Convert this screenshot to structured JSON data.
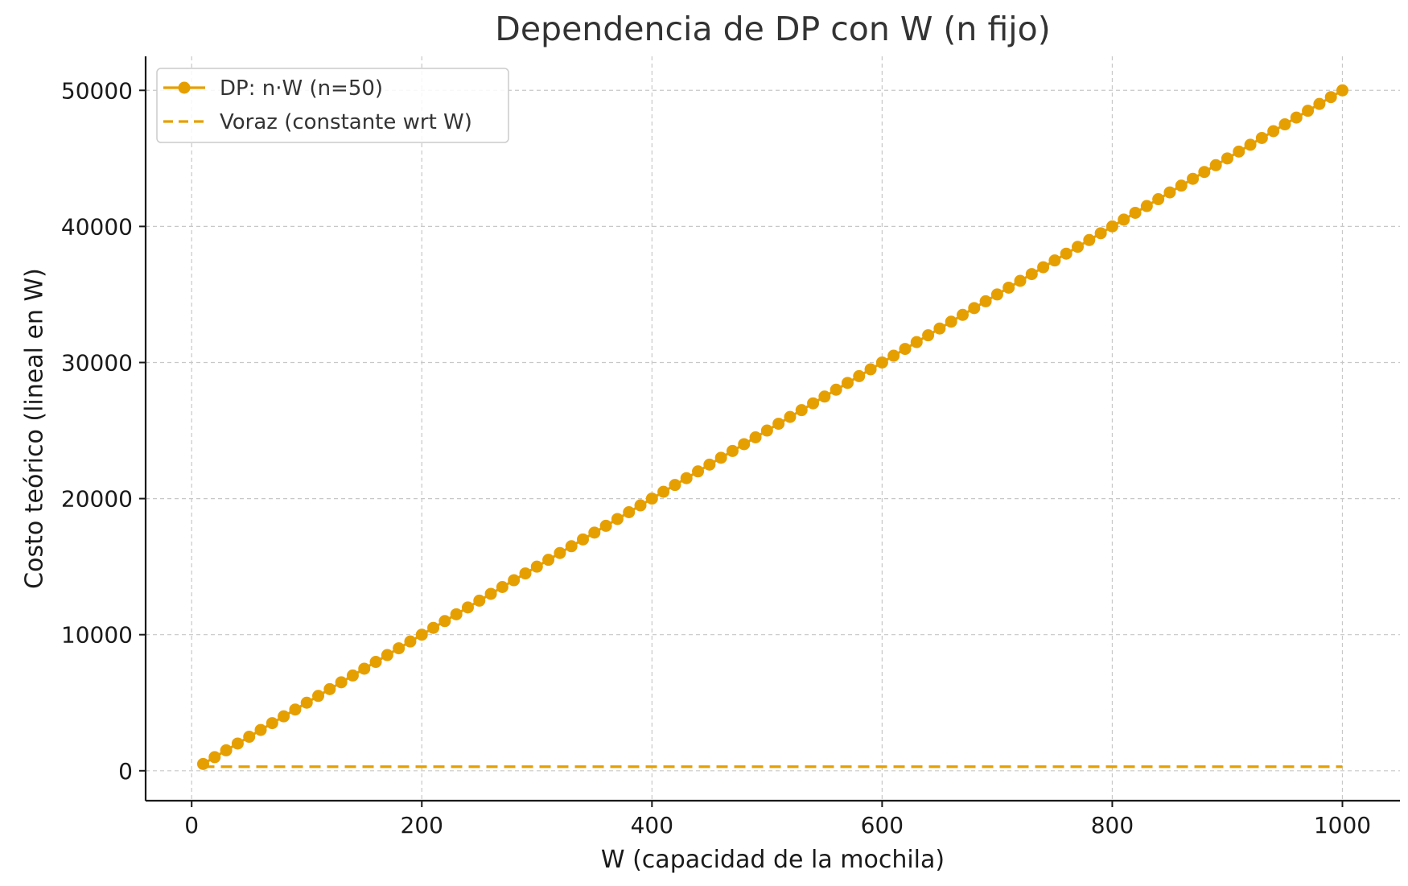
{
  "chart_data": {
    "type": "line",
    "title": "Dependencia de DP con W (n fijo)",
    "xlabel": "W (capacidad de la mochila)",
    "ylabel": "Costo teórico (lineal en W)",
    "xlim": [
      -40,
      1050
    ],
    "ylim": [
      -2200,
      52500
    ],
    "x_ticks": [
      0,
      200,
      400,
      600,
      800,
      1000
    ],
    "y_ticks": [
      0,
      10000,
      20000,
      30000,
      40000,
      50000
    ],
    "grid": true,
    "legend_position": "top-left",
    "series": [
      {
        "name": "DP: n·W (n=50)",
        "color": "#E69F00",
        "style": "solid-with-circle-markers",
        "x": [
          10,
          20,
          30,
          40,
          50,
          60,
          70,
          80,
          90,
          100,
          110,
          120,
          130,
          140,
          150,
          160,
          170,
          180,
          190,
          200,
          210,
          220,
          230,
          240,
          250,
          260,
          270,
          280,
          290,
          300,
          310,
          320,
          330,
          340,
          350,
          360,
          370,
          380,
          390,
          400,
          410,
          420,
          430,
          440,
          450,
          460,
          470,
          480,
          490,
          500,
          510,
          520,
          530,
          540,
          550,
          560,
          570,
          580,
          590,
          600,
          610,
          620,
          630,
          640,
          650,
          660,
          670,
          680,
          690,
          700,
          710,
          720,
          730,
          740,
          750,
          760,
          770,
          780,
          790,
          800,
          810,
          820,
          830,
          840,
          850,
          860,
          870,
          880,
          890,
          900,
          910,
          920,
          930,
          940,
          950,
          960,
          970,
          980,
          990,
          1000
        ],
        "y": [
          500,
          1000,
          1500,
          2000,
          2500,
          3000,
          3500,
          4000,
          4500,
          5000,
          5500,
          6000,
          6500,
          7000,
          7500,
          8000,
          8500,
          9000,
          9500,
          10000,
          10500,
          11000,
          11500,
          12000,
          12500,
          13000,
          13500,
          14000,
          14500,
          15000,
          15500,
          16000,
          16500,
          17000,
          17500,
          18000,
          18500,
          19000,
          19500,
          20000,
          20500,
          21000,
          21500,
          22000,
          22500,
          23000,
          23500,
          24000,
          24500,
          25000,
          25500,
          26000,
          26500,
          27000,
          27500,
          28000,
          28500,
          29000,
          29500,
          30000,
          30500,
          31000,
          31500,
          32000,
          32500,
          33000,
          33500,
          34000,
          34500,
          35000,
          35500,
          36000,
          36500,
          37000,
          37500,
          38000,
          38500,
          39000,
          39500,
          40000,
          40500,
          41000,
          41500,
          42000,
          42500,
          43000,
          43500,
          44000,
          44500,
          45000,
          45500,
          46000,
          46500,
          47000,
          47500,
          48000,
          48500,
          49000,
          49500,
          50000
        ]
      },
      {
        "name": "Voraz (constante wrt W)",
        "color": "#E69F00",
        "style": "dashed",
        "x": [
          10,
          1000
        ],
        "y": [
          300,
          300
        ]
      }
    ]
  }
}
